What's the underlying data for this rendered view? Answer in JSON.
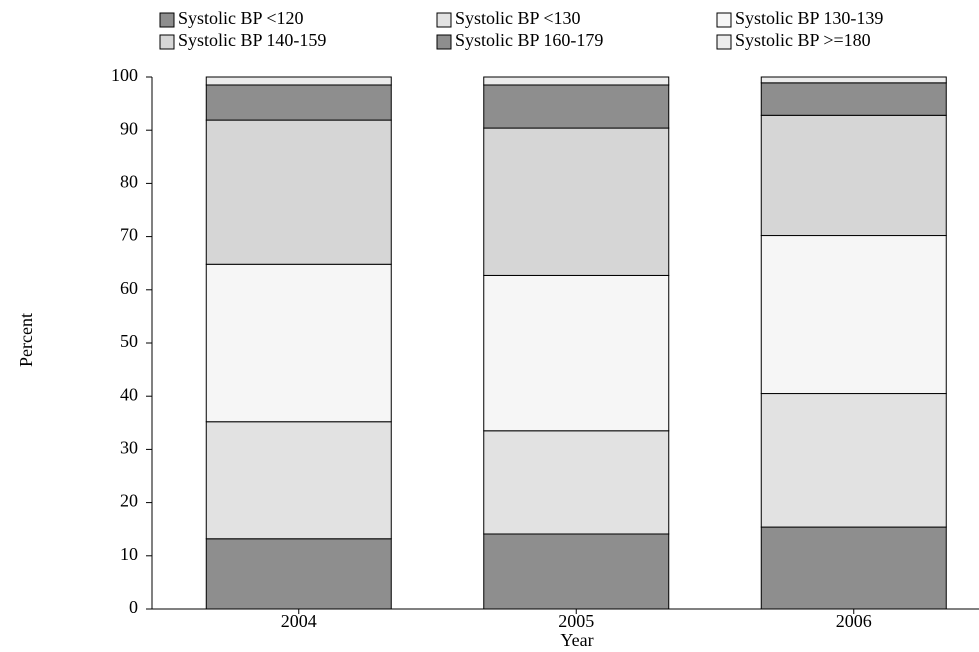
{
  "chart_data": {
    "type": "stacked_bar",
    "x_label": "Year",
    "y_label": "Percent",
    "categories": [
      "2004",
      "2005",
      "2006"
    ],
    "series": [
      {
        "name": "Systolic BP <120",
        "color": "#8e8e8e",
        "values": [
          13.2,
          14.1,
          15.4
        ]
      },
      {
        "name": "Systolic BP <130",
        "color": "#e2e2e2",
        "values": [
          22.0,
          19.4,
          25.1
        ]
      },
      {
        "name": "Systolic BP 130-139",
        "color": "#f6f6f6",
        "values": [
          29.6,
          29.2,
          29.7
        ]
      },
      {
        "name": "Systolic BP 140-159",
        "color": "#d6d6d6",
        "values": [
          27.1,
          27.7,
          22.6
        ]
      },
      {
        "name": "Systolic BP 160-179",
        "color": "#8e8e8e",
        "values": [
          6.6,
          8.1,
          6.1
        ]
      },
      {
        "name": "Systolic BP >=180",
        "color": "#ececec",
        "values": [
          1.5,
          1.5,
          1.1
        ]
      }
    ],
    "ylim": [
      0,
      100
    ],
    "yticks": [
      0,
      10,
      20,
      30,
      40,
      50,
      60,
      70,
      80,
      90,
      100
    ]
  }
}
